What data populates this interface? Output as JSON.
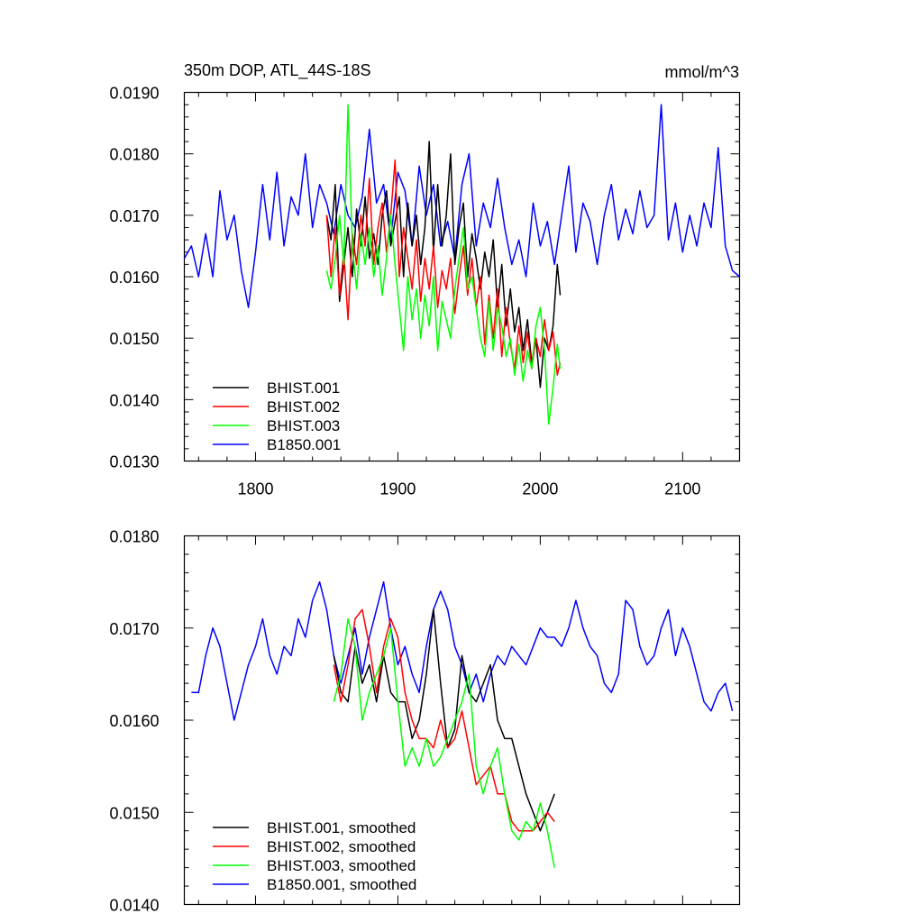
{
  "chart_data": [
    {
      "type": "line",
      "title": "350m DOP, ATL_44S-18S",
      "units": "mmol/m^3",
      "xlim": [
        1750,
        2140
      ],
      "ylim": [
        0.013,
        0.019
      ],
      "xticks": [
        1800,
        1900,
        2000,
        2100
      ],
      "xtick_labels": [
        "1800",
        "1900",
        "2000",
        "2100"
      ],
      "yticks": [
        0.013,
        0.014,
        0.015,
        0.016,
        0.017,
        0.018,
        0.019
      ],
      "ytick_labels": [
        "0.0130",
        "0.0140",
        "0.0150",
        "0.0160",
        "0.0170",
        "0.0180",
        "0.0190"
      ],
      "legend_position": "bottom-left",
      "series": [
        {
          "name": "BHIST.001",
          "color": "#000000",
          "x": [
            1850,
            1853,
            1856,
            1859,
            1862,
            1865,
            1868,
            1871,
            1874,
            1877,
            1880,
            1883,
            1886,
            1889,
            1892,
            1895,
            1898,
            1901,
            1904,
            1907,
            1910,
            1913,
            1916,
            1919,
            1922,
            1925,
            1928,
            1931,
            1934,
            1937,
            1940,
            1943,
            1946,
            1949,
            1952,
            1955,
            1958,
            1961,
            1964,
            1967,
            1970,
            1973,
            1976,
            1979,
            1982,
            1985,
            1988,
            1991,
            1994,
            1997,
            2000,
            2003,
            2006,
            2009,
            2012,
            2014
          ],
          "y": [
            0.017,
            0.0166,
            0.0175,
            0.0156,
            0.0162,
            0.0168,
            0.016,
            0.0171,
            0.0165,
            0.0173,
            0.0163,
            0.0167,
            0.0162,
            0.017,
            0.0174,
            0.0165,
            0.0169,
            0.0173,
            0.016,
            0.0172,
            0.0165,
            0.017,
            0.0162,
            0.0168,
            0.0182,
            0.0164,
            0.0175,
            0.0165,
            0.017,
            0.018,
            0.0162,
            0.0168,
            0.0172,
            0.016,
            0.0167,
            0.0163,
            0.0158,
            0.0164,
            0.016,
            0.0166,
            0.0155,
            0.0162,
            0.0152,
            0.0158,
            0.0151,
            0.0155,
            0.0148,
            0.0153,
            0.0146,
            0.015,
            0.0142,
            0.015,
            0.0148,
            0.0152,
            0.0162,
            0.0157
          ]
        },
        {
          "name": "BHIST.002",
          "color": "#ff0000",
          "x": [
            1850,
            1853,
            1856,
            1859,
            1862,
            1865,
            1868,
            1871,
            1874,
            1877,
            1880,
            1883,
            1886,
            1889,
            1892,
            1895,
            1898,
            1901,
            1904,
            1907,
            1910,
            1913,
            1916,
            1919,
            1922,
            1925,
            1928,
            1931,
            1934,
            1937,
            1940,
            1943,
            1946,
            1949,
            1952,
            1955,
            1958,
            1961,
            1964,
            1967,
            1970,
            1973,
            1976,
            1979,
            1982,
            1985,
            1988,
            1991,
            1994,
            1997,
            2000,
            2003,
            2006,
            2009,
            2012,
            2014
          ],
          "y": [
            0.017,
            0.016,
            0.0168,
            0.0157,
            0.0164,
            0.0153,
            0.0167,
            0.0162,
            0.017,
            0.0165,
            0.0176,
            0.0162,
            0.0168,
            0.0172,
            0.0164,
            0.017,
            0.0179,
            0.016,
            0.0168,
            0.0163,
            0.0158,
            0.0166,
            0.0156,
            0.0163,
            0.0158,
            0.0165,
            0.0155,
            0.0161,
            0.0158,
            0.0163,
            0.0154,
            0.016,
            0.0165,
            0.0157,
            0.0163,
            0.0155,
            0.016,
            0.0149,
            0.0157,
            0.015,
            0.0158,
            0.0147,
            0.0155,
            0.0149,
            0.0145,
            0.0152,
            0.0146,
            0.0151,
            0.0145,
            0.015,
            0.0147,
            0.0153,
            0.0148,
            0.0151,
            0.0144,
            0.0146
          ]
        },
        {
          "name": "BHIST.003",
          "color": "#00ff00",
          "x": [
            1850,
            1853,
            1856,
            1859,
            1862,
            1865,
            1868,
            1871,
            1874,
            1877,
            1880,
            1883,
            1886,
            1889,
            1892,
            1895,
            1898,
            1901,
            1904,
            1907,
            1910,
            1913,
            1916,
            1919,
            1922,
            1925,
            1928,
            1931,
            1934,
            1937,
            1940,
            1943,
            1946,
            1949,
            1952,
            1955,
            1958,
            1961,
            1964,
            1967,
            1970,
            1973,
            1976,
            1979,
            1982,
            1985,
            1988,
            1991,
            1994,
            1997,
            2000,
            2003,
            2006,
            2009,
            2012,
            2014
          ],
          "y": [
            0.0161,
            0.0158,
            0.0163,
            0.017,
            0.0162,
            0.0188,
            0.0165,
            0.0158,
            0.0167,
            0.0162,
            0.0168,
            0.016,
            0.0165,
            0.0157,
            0.0163,
            0.017,
            0.0162,
            0.0155,
            0.0148,
            0.016,
            0.0153,
            0.0158,
            0.015,
            0.0157,
            0.0152,
            0.016,
            0.0148,
            0.0156,
            0.0153,
            0.015,
            0.0158,
            0.0163,
            0.0168,
            0.0158,
            0.016,
            0.0155,
            0.015,
            0.0147,
            0.0156,
            0.0148,
            0.0155,
            0.0152,
            0.0147,
            0.015,
            0.0144,
            0.0149,
            0.0143,
            0.0148,
            0.0145,
            0.0152,
            0.0155,
            0.0148,
            0.0136,
            0.0142,
            0.0149,
            0.0145
          ]
        },
        {
          "name": "B1850.001",
          "color": "#0000ff",
          "x": [
            1750,
            1755,
            1760,
            1765,
            1770,
            1775,
            1780,
            1785,
            1790,
            1795,
            1800,
            1805,
            1810,
            1815,
            1820,
            1825,
            1830,
            1835,
            1840,
            1845,
            1850,
            1855,
            1860,
            1865,
            1870,
            1875,
            1880,
            1885,
            1890,
            1895,
            1900,
            1905,
            1910,
            1915,
            1920,
            1925,
            1930,
            1935,
            1940,
            1945,
            1950,
            1955,
            1960,
            1965,
            1970,
            1975,
            1980,
            1985,
            1990,
            1995,
            2000,
            2005,
            2010,
            2015,
            2020,
            2025,
            2030,
            2035,
            2040,
            2045,
            2050,
            2055,
            2060,
            2065,
            2070,
            2075,
            2080,
            2085,
            2090,
            2095,
            2100,
            2105,
            2110,
            2115,
            2120,
            2125,
            2130,
            2135,
            2140
          ],
          "y": [
            0.0163,
            0.0165,
            0.016,
            0.0167,
            0.016,
            0.0174,
            0.0166,
            0.017,
            0.0161,
            0.0155,
            0.0164,
            0.0175,
            0.0166,
            0.0177,
            0.0165,
            0.0173,
            0.017,
            0.018,
            0.0168,
            0.0175,
            0.0172,
            0.0167,
            0.0175,
            0.017,
            0.0168,
            0.0173,
            0.0184,
            0.0172,
            0.0175,
            0.0166,
            0.0177,
            0.0174,
            0.0165,
            0.0178,
            0.017,
            0.0175,
            0.0165,
            0.0169,
            0.0163,
            0.0175,
            0.018,
            0.0165,
            0.0172,
            0.0168,
            0.0176,
            0.0168,
            0.0162,
            0.0166,
            0.016,
            0.0172,
            0.0165,
            0.0169,
            0.0162,
            0.017,
            0.0178,
            0.0164,
            0.0172,
            0.0169,
            0.0162,
            0.017,
            0.0175,
            0.0166,
            0.0171,
            0.0167,
            0.0174,
            0.0168,
            0.017,
            0.0188,
            0.0166,
            0.0172,
            0.0164,
            0.017,
            0.0165,
            0.0172,
            0.0168,
            0.0181,
            0.0165,
            0.0161,
            0.016
          ]
        }
      ]
    },
    {
      "type": "line",
      "xlim": [
        1750,
        2140
      ],
      "ylim": [
        0.014,
        0.018
      ],
      "xticks": [
        1800,
        1900,
        2000,
        2100
      ],
      "yticks": [
        0.014,
        0.015,
        0.016,
        0.017,
        0.018
      ],
      "ytick_labels": [
        "0.0140",
        "0.0150",
        "0.0160",
        "0.0170",
        "0.0180"
      ],
      "legend_position": "bottom-left",
      "series": [
        {
          "name": "BHIST.001, smoothed",
          "color": "#000000",
          "x": [
            1855,
            1860,
            1865,
            1870,
            1875,
            1880,
            1885,
            1890,
            1895,
            1900,
            1905,
            1910,
            1915,
            1920,
            1925,
            1930,
            1935,
            1940,
            1945,
            1950,
            1955,
            1960,
            1965,
            1970,
            1975,
            1980,
            1985,
            1990,
            1995,
            2000,
            2005,
            2010
          ],
          "y": [
            0.0167,
            0.0163,
            0.0162,
            0.0168,
            0.0164,
            0.0166,
            0.0162,
            0.0167,
            0.0163,
            0.0162,
            0.0162,
            0.0158,
            0.016,
            0.0165,
            0.0172,
            0.0164,
            0.0157,
            0.0159,
            0.0167,
            0.0163,
            0.0162,
            0.0164,
            0.0166,
            0.016,
            0.0158,
            0.0158,
            0.0155,
            0.0152,
            0.015,
            0.0148,
            0.015,
            0.0152
          ]
        },
        {
          "name": "BHIST.002, smoothed",
          "color": "#ff0000",
          "x": [
            1855,
            1860,
            1865,
            1870,
            1875,
            1880,
            1885,
            1890,
            1895,
            1900,
            1905,
            1910,
            1915,
            1920,
            1925,
            1930,
            1935,
            1940,
            1945,
            1950,
            1955,
            1960,
            1965,
            1970,
            1975,
            1980,
            1985,
            1990,
            1995,
            2000,
            2005,
            2010
          ],
          "y": [
            0.0166,
            0.0162,
            0.0166,
            0.0171,
            0.0172,
            0.0168,
            0.0163,
            0.0168,
            0.0171,
            0.0169,
            0.0163,
            0.016,
            0.0158,
            0.0158,
            0.0157,
            0.016,
            0.0157,
            0.0158,
            0.0161,
            0.0157,
            0.0153,
            0.0154,
            0.0155,
            0.0152,
            0.0152,
            0.0149,
            0.0148,
            0.0148,
            0.0148,
            0.0149,
            0.015,
            0.0149
          ]
        },
        {
          "name": "BHIST.003, smoothed",
          "color": "#00ff00",
          "x": [
            1855,
            1860,
            1865,
            1870,
            1875,
            1880,
            1885,
            1890,
            1895,
            1900,
            1905,
            1910,
            1915,
            1920,
            1925,
            1930,
            1935,
            1940,
            1945,
            1950,
            1955,
            1960,
            1965,
            1970,
            1975,
            1980,
            1985,
            1990,
            1995,
            2000,
            2005,
            2010
          ],
          "y": [
            0.0162,
            0.0165,
            0.0171,
            0.0168,
            0.016,
            0.0163,
            0.0165,
            0.0167,
            0.017,
            0.0162,
            0.0155,
            0.0157,
            0.0155,
            0.0158,
            0.0155,
            0.0156,
            0.0158,
            0.016,
            0.0162,
            0.0165,
            0.0155,
            0.0152,
            0.0155,
            0.0157,
            0.0152,
            0.0148,
            0.0147,
            0.0149,
            0.0148,
            0.0151,
            0.0148,
            0.0144
          ]
        },
        {
          "name": "B1850.001, smoothed",
          "color": "#0000ff",
          "x": [
            1755,
            1760,
            1765,
            1770,
            1775,
            1780,
            1785,
            1790,
            1795,
            1800,
            1805,
            1810,
            1815,
            1820,
            1825,
            1830,
            1835,
            1840,
            1845,
            1850,
            1855,
            1860,
            1865,
            1870,
            1875,
            1880,
            1885,
            1890,
            1895,
            1900,
            1905,
            1910,
            1915,
            1920,
            1925,
            1930,
            1935,
            1940,
            1945,
            1950,
            1955,
            1960,
            1965,
            1970,
            1975,
            1980,
            1985,
            1990,
            1995,
            2000,
            2005,
            2010,
            2015,
            2020,
            2025,
            2030,
            2035,
            2040,
            2045,
            2050,
            2055,
            2060,
            2065,
            2070,
            2075,
            2080,
            2085,
            2090,
            2095,
            2100,
            2105,
            2110,
            2115,
            2120,
            2125,
            2130,
            2135
          ],
          "y": [
            0.0163,
            0.0163,
            0.0167,
            0.017,
            0.0168,
            0.0164,
            0.016,
            0.0163,
            0.0166,
            0.0168,
            0.0171,
            0.0167,
            0.0165,
            0.0168,
            0.0167,
            0.0171,
            0.0169,
            0.0173,
            0.0175,
            0.0172,
            0.0167,
            0.0164,
            0.0167,
            0.017,
            0.0165,
            0.0169,
            0.0172,
            0.0175,
            0.017,
            0.0166,
            0.0168,
            0.0165,
            0.0163,
            0.0168,
            0.0172,
            0.0174,
            0.0172,
            0.0168,
            0.0166,
            0.0163,
            0.0165,
            0.0162,
            0.0165,
            0.0167,
            0.0166,
            0.0168,
            0.0167,
            0.0166,
            0.0168,
            0.017,
            0.0169,
            0.0169,
            0.0168,
            0.017,
            0.0173,
            0.017,
            0.0168,
            0.0167,
            0.0164,
            0.0163,
            0.0165,
            0.0173,
            0.0172,
            0.0168,
            0.0166,
            0.0167,
            0.017,
            0.0172,
            0.0167,
            0.017,
            0.0168,
            0.0165,
            0.0162,
            0.0161,
            0.0163,
            0.0164,
            0.0161
          ]
        }
      ]
    }
  ]
}
